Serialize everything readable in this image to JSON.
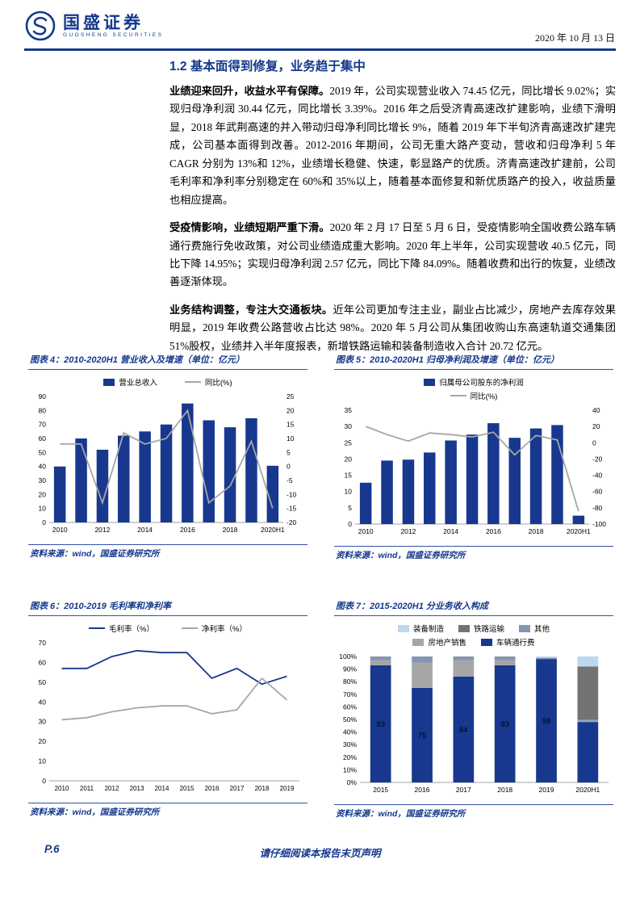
{
  "colors": {
    "brand": "#14388C",
    "line_gray": "#A6A6A6"
  },
  "header": {
    "brand": "国盛证券",
    "brand_en": "GUOSHENG SECURITIES",
    "date": "2020 年 10 月 13 日"
  },
  "section": {
    "title": "1.2 基本面得到修复，业务趋于集中",
    "paragraphs": [
      {
        "lead": "业绩迎来回升，收益水平有保障。",
        "body": "2019 年，公司实现营业收入 74.45 亿元，同比增长 9.02%；实现归母净利润 30.44 亿元，同比增长 3.39%。2016 年之后受济青高速改扩建影响，业绩下滑明显，2018 年武荆高速的并入带动归母净利同比增长 9%，随着 2019 年下半旬济青高速改扩建完成，公司基本面得到改善。2012-2016 年期间，公司无重大路产变动，营收和归母净利 5 年 CAGR 分别为 13%和 12%，业绩增长稳健、快速，彰显路产的优质。济青高速改扩建前，公司毛利率和净利率分别稳定在 60%和 35%以上，随着基本面修复和新优质路产的投入，收益质量也相应提高。"
      },
      {
        "lead": "受疫情影响，业绩短期严重下滑。",
        "body": "2020 年 2 月 17 日至 5 月 6 日，受疫情影响全国收费公路车辆通行费施行免收政策，对公司业绩造成重大影响。2020 年上半年，公司实现营收 40.5 亿元，同比下降 14.95%；实现归母净利润 2.57 亿元，同比下降 84.09%。随着收费和出行的恢复，业绩改善逐渐体现。"
      },
      {
        "lead": "业务结构调整，专注大交通板块。",
        "body": "近年公司更加专注主业，副业占比减少，房地产去库存效果明显，2019 年收费公路营收占比达 98%。2020 年 5 月公司从集团收购山东高速轨道交通集团 51%股权，业绩并入半年度报表，新增铁路运输和装备制造收入合计 20.72 亿元。"
      }
    ]
  },
  "chart_data": [
    {
      "name": "fig4",
      "caption": "图表 4：2010-2020H1 营业收入及增速（单位：亿元）",
      "type": "bar-line",
      "categories": [
        "2010",
        "2011",
        "2012",
        "2013",
        "2014",
        "2015",
        "2016",
        "2017",
        "2018",
        "2019",
        "2020H1"
      ],
      "x_ticks": [
        "2010",
        "2012",
        "2014",
        "2016",
        "2018",
        "2020H1"
      ],
      "series": [
        {
          "name": "营业总收入",
          "type": "bar",
          "axis": "left",
          "color": "#17388E",
          "values": [
            40,
            60,
            52,
            62,
            65,
            70,
            85,
            73,
            68,
            74.45,
            40.5
          ]
        },
        {
          "name": "同比(%)",
          "type": "line",
          "axis": "right",
          "color": "#A6A6A6",
          "values": [
            8,
            8,
            -13,
            12,
            8,
            10,
            20,
            -13,
            -7,
            9.02,
            -14.95
          ]
        }
      ],
      "legend_rows": [
        [
          "营业总收入",
          "同比(%)"
        ]
      ],
      "left_axis": {
        "min": 0,
        "max": 90,
        "step": 10
      },
      "right_axis": {
        "min": -20,
        "max": 25,
        "step": 5
      },
      "grid": false,
      "source": "资料来源：wind，国盛证券研究所"
    },
    {
      "name": "fig5",
      "caption": "图表 5：2010-2020H1 归母净利润及增速（单位：亿元）",
      "type": "bar-line",
      "categories": [
        "2010",
        "2011",
        "2012",
        "2013",
        "2014",
        "2015",
        "2016",
        "2017",
        "2018",
        "2019",
        "2020H1"
      ],
      "x_ticks": [
        "2010",
        "2012",
        "2014",
        "2016",
        "2018",
        "2020H1"
      ],
      "series": [
        {
          "name": "归属母公司股东的净利润",
          "type": "bar",
          "axis": "left",
          "color": "#17388E",
          "values": [
            12.7,
            19.5,
            19.8,
            22,
            25.7,
            27.5,
            31,
            26.5,
            29.4,
            30.44,
            2.57
          ]
        },
        {
          "name": "同比(%)",
          "type": "line",
          "axis": "right",
          "color": "#A6A6A6",
          "values": [
            20,
            10,
            2,
            12,
            10,
            7,
            13,
            -15,
            9,
            3.39,
            -84.09
          ]
        }
      ],
      "legend_rows": [
        [
          "归属母公司股东的净利润"
        ],
        [
          "同比(%)"
        ]
      ],
      "left_axis": {
        "min": 0,
        "max": 35,
        "step": 5
      },
      "right_axis": {
        "min": -100,
        "max": 40,
        "step": 20
      },
      "grid": false,
      "source": "资料来源：wind，国盛证券研究所"
    },
    {
      "name": "fig6",
      "caption": "图表 6：2010-2019 毛利率和净利率",
      "type": "line",
      "categories": [
        "2010",
        "2011",
        "2012",
        "2013",
        "2014",
        "2015",
        "2016",
        "2017",
        "2018",
        "2019"
      ],
      "series": [
        {
          "name": "毛利率（%）",
          "type": "line",
          "color": "#17388E",
          "values": [
            57,
            57,
            63,
            66,
            65,
            65,
            52,
            57,
            49,
            53
          ]
        },
        {
          "name": "净利率（%）",
          "type": "line",
          "color": "#A6A6A6",
          "values": [
            31,
            32,
            35,
            37,
            38,
            38,
            34,
            36,
            52,
            41
          ]
        }
      ],
      "legend_rows": [
        [
          "毛利率（%）",
          "净利率（%）"
        ]
      ],
      "left_axis": {
        "min": 0,
        "max": 70,
        "step": 10
      },
      "grid": false,
      "source": "资料来源：wind，国盛证券研究所"
    },
    {
      "name": "fig7",
      "caption": "图表 7：2015-2020H1 分业务收入构成",
      "type": "stacked-bar",
      "categories": [
        "2015",
        "2016",
        "2017",
        "2018",
        "2019",
        "2020H1"
      ],
      "series": [
        {
          "name": "车辆通行费",
          "type": "bar",
          "color": "#17388E",
          "values": [
            93,
            75,
            84,
            93,
            98,
            48
          ]
        },
        {
          "name": "房地产销售",
          "type": "bar",
          "color": "#A6A6A6",
          "values": [
            4,
            20,
            13,
            4,
            0,
            1
          ]
        },
        {
          "name": "其他",
          "type": "bar",
          "color": "#8496B0",
          "values": [
            3,
            5,
            3,
            3,
            1,
            1
          ]
        },
        {
          "name": "铁路运输",
          "type": "bar",
          "color": "#737373",
          "values": [
            0,
            0,
            0,
            0,
            0,
            42
          ]
        },
        {
          "name": "装备制造",
          "type": "bar",
          "color": "#BDD7EE",
          "values": [
            0,
            0,
            0,
            0,
            1,
            8
          ]
        }
      ],
      "bar_labels": [
        "93",
        "75",
        "84",
        "93",
        "98",
        ""
      ],
      "legend_rows": [
        [
          "装备制造",
          "铁路运输",
          "其他"
        ],
        [
          "房地产销售",
          "车辆通行费"
        ]
      ],
      "left_axis": {
        "min": 0,
        "max": 100,
        "step": 10,
        "suffix": "%"
      },
      "grid": false,
      "source": "资料来源：wind，国盛证券研究所"
    }
  ],
  "footer": {
    "page": "P.6",
    "disclaimer": "请仔细阅读本报告末页声明"
  }
}
